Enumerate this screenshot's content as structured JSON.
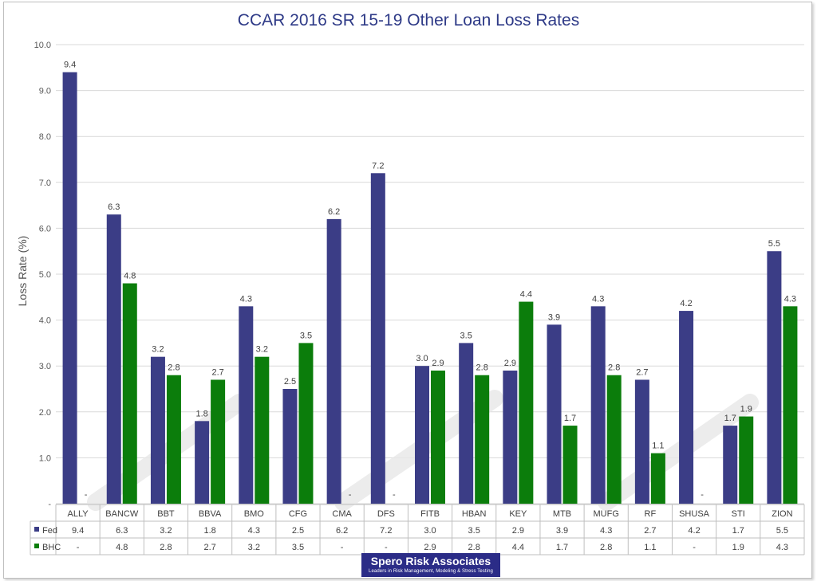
{
  "chart_data": {
    "type": "bar",
    "title": "CCAR 2016 SR 15-19 Other Loan Loss Rates",
    "xlabel": "",
    "ylabel": "Loss Rate (%)",
    "ylim": [
      0,
      10
    ],
    "yticks": [
      "-",
      "1.0",
      "2.0",
      "3.0",
      "4.0",
      "5.0",
      "6.0",
      "7.0",
      "8.0",
      "9.0",
      "10.0"
    ],
    "grid": true,
    "categories": [
      "ALLY",
      "BANCW",
      "BBT",
      "BBVA",
      "BMO",
      "CFG",
      "CMA",
      "DFS",
      "FITB",
      "HBAN",
      "KEY",
      "MTB",
      "MUFG",
      "RF",
      "SHUSA",
      "STI",
      "ZION"
    ],
    "series": [
      {
        "name": "Fed",
        "color": "#3b3d86",
        "values": [
          9.4,
          6.3,
          3.2,
          1.8,
          4.3,
          2.5,
          6.2,
          7.2,
          3.0,
          3.5,
          2.9,
          3.9,
          4.3,
          2.7,
          4.2,
          1.7,
          5.5
        ],
        "labels": [
          "9.4",
          "6.3",
          "3.2",
          "1.8",
          "4.3",
          "2.5",
          "6.2",
          "7.2",
          "3.0",
          "3.5",
          "2.9",
          "3.9",
          "4.3",
          "2.7",
          "4.2",
          "1.7",
          "5.5"
        ]
      },
      {
        "name": "BHC",
        "color": "#0b7d0b",
        "values": [
          null,
          4.8,
          2.8,
          2.7,
          3.2,
          3.5,
          null,
          null,
          2.9,
          2.8,
          4.4,
          1.7,
          2.8,
          1.1,
          null,
          1.9,
          4.3
        ],
        "labels": [
          "-",
          "4.8",
          "2.8",
          "2.7",
          "3.2",
          "3.5",
          "-",
          "-",
          "2.9",
          "2.8",
          "4.4",
          "1.7",
          "2.8",
          "1.1",
          "-",
          "1.9",
          "4.3"
        ]
      }
    ],
    "legend": "data-table"
  },
  "branding": {
    "company": "Spero Risk Associates",
    "tagline": "Leaders in Risk Management, Modeling & Stress Testing"
  }
}
